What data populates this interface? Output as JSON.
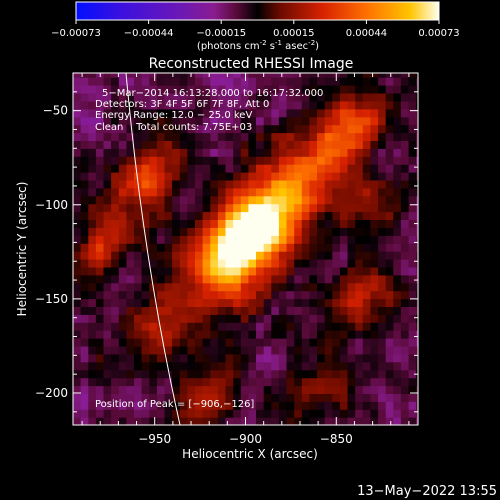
{
  "colorbar": {
    "ticks": [
      "-0.00073",
      "-0.00044",
      "-0.00015",
      "0.00015",
      "0.00044",
      "0.00073"
    ],
    "units_prefix": "(photons cm",
    "units_sup1": "-2",
    "units_mid": " s",
    "units_sup2": "-1",
    "units_mid2": " asec",
    "units_sup3": "-2",
    "units_suffix": ")"
  },
  "chart_data": {
    "type": "heatmap",
    "title": "Reconstructed RHESSI Image",
    "xlabel": "Heliocentric X (arcsec)",
    "ylabel": "Heliocentric Y (arcsec)",
    "xlim": [
      -995,
      -805
    ],
    "ylim": [
      -217,
      -30
    ],
    "xticks": [
      -950,
      -900,
      -850
    ],
    "yticks": [
      -50,
      -100,
      -150,
      -200
    ],
    "xtick_labels": [
      "−950",
      "−900",
      "−850"
    ],
    "ytick_labels": [
      "−50",
      "−100",
      "−150",
      "−200"
    ],
    "clim": [
      -0.00073,
      0.00073
    ],
    "sources": [
      {
        "x": -906,
        "y": -126,
        "sigma": 18,
        "amp": 1.0
      },
      {
        "x": -893,
        "y": -110,
        "sigma": 15,
        "amp": 0.7
      },
      {
        "x": -868,
        "y": -85,
        "sigma": 18,
        "amp": 0.55
      },
      {
        "x": -840,
        "y": -58,
        "sigma": 13,
        "amp": 0.5
      },
      {
        "x": -955,
        "y": -85,
        "sigma": 14,
        "amp": 0.55
      },
      {
        "x": -980,
        "y": -125,
        "sigma": 11,
        "amp": 0.45
      },
      {
        "x": -950,
        "y": -165,
        "sigma": 13,
        "amp": 0.38
      },
      {
        "x": -920,
        "y": -200,
        "sigma": 12,
        "amp": 0.35
      },
      {
        "x": -835,
        "y": -150,
        "sigma": 12,
        "amp": 0.35
      },
      {
        "x": -830,
        "y": -100,
        "sigma": 11,
        "amp": 0.3
      },
      {
        "x": -860,
        "y": -200,
        "sigma": 12,
        "amp": 0.3
      }
    ],
    "annotations": {
      "time_range": "5−Mar−2014 16:13:28.000 to 16:17:32.000",
      "detectors": "Detectors: 3F 4F 5F 6F 7F 8F, Att 0",
      "energy": "Energy Range: 12.0 − 25.0 keV",
      "clean": "Clean    Total counts: 7.75E+03",
      "peak": "Position of Peak = [−906,−126]"
    }
  },
  "footer": {
    "date": "13−May−2022 13:55"
  }
}
